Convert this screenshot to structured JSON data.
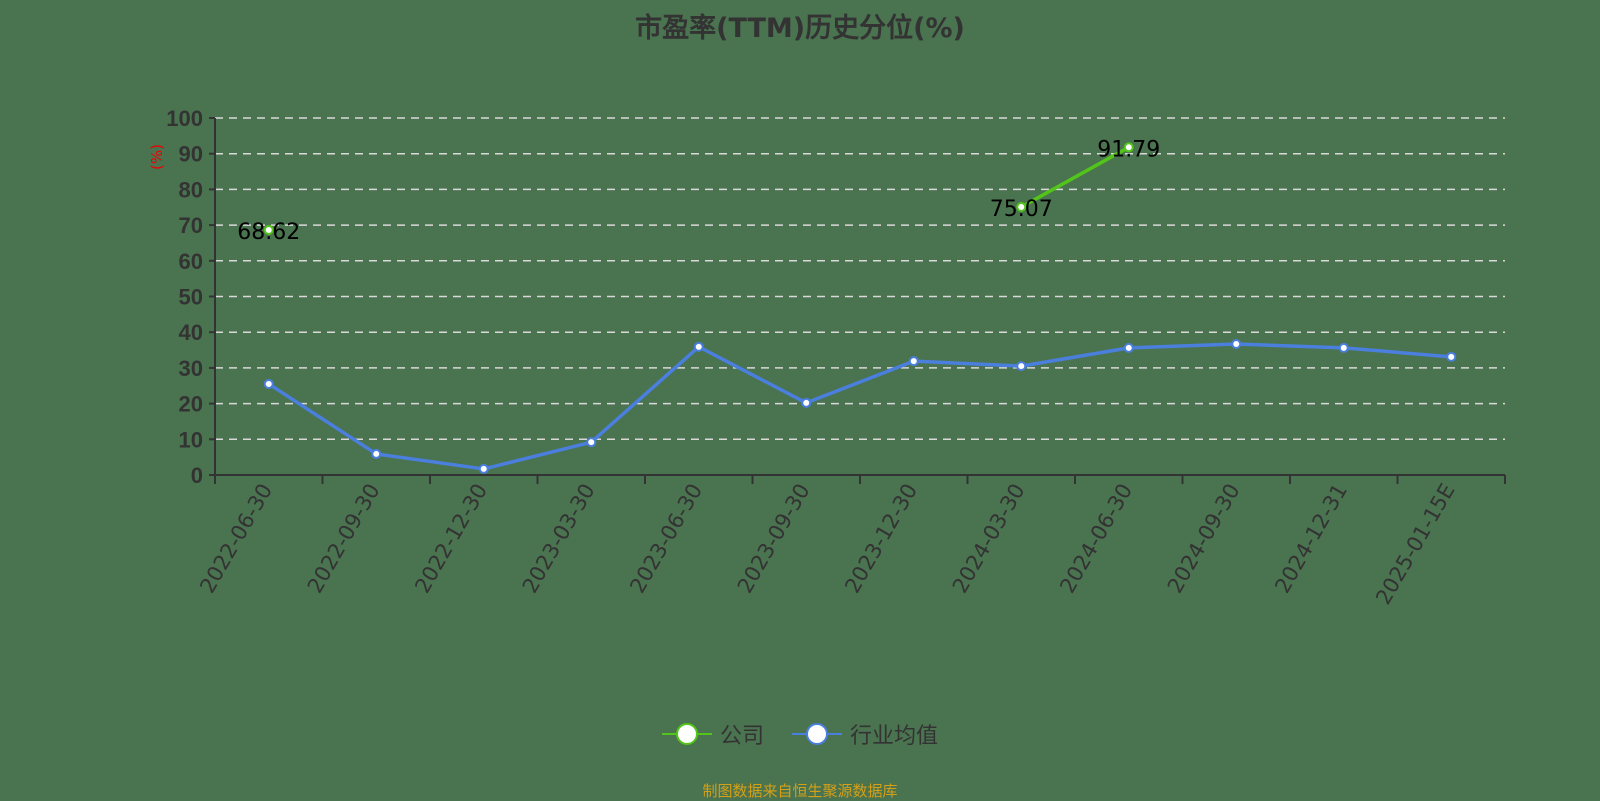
{
  "title": "市盈率(TTM)历史分位(%)",
  "source": "制图数据来自恒生聚源数据库",
  "legend": [
    {
      "label": "公司",
      "color": "#52c41a"
    },
    {
      "label": "行业均值",
      "color": "#4a7fdd"
    }
  ],
  "chart_data": {
    "type": "line",
    "title": "市盈率(TTM)历史分位(%)",
    "xlabel": "",
    "ylabel": "(%)",
    "ylim": [
      0,
      100
    ],
    "yticks": [
      0,
      10,
      20,
      30,
      40,
      50,
      60,
      70,
      80,
      90,
      100
    ],
    "grid": true,
    "legend_position": "bottom",
    "categories": [
      "2022-06-30",
      "2022-09-30",
      "2022-12-30",
      "2023-03-30",
      "2023-06-30",
      "2023-09-30",
      "2023-12-30",
      "2024-03-30",
      "2024-06-30",
      "2024-09-30",
      "2024-12-31",
      "2025-01-15E"
    ],
    "series": [
      {
        "name": "公司",
        "color": "#52c41a",
        "values": [
          68.62,
          null,
          null,
          null,
          null,
          null,
          null,
          75.07,
          91.79,
          null,
          null,
          null
        ],
        "labels": true
      },
      {
        "name": "行业均值",
        "color": "#4a7fdd",
        "values": [
          25.5,
          5.9,
          1.7,
          9.2,
          35.9,
          20.2,
          31.9,
          30.5,
          35.6,
          36.7,
          35.6,
          33.1
        ],
        "labels": false
      }
    ]
  }
}
